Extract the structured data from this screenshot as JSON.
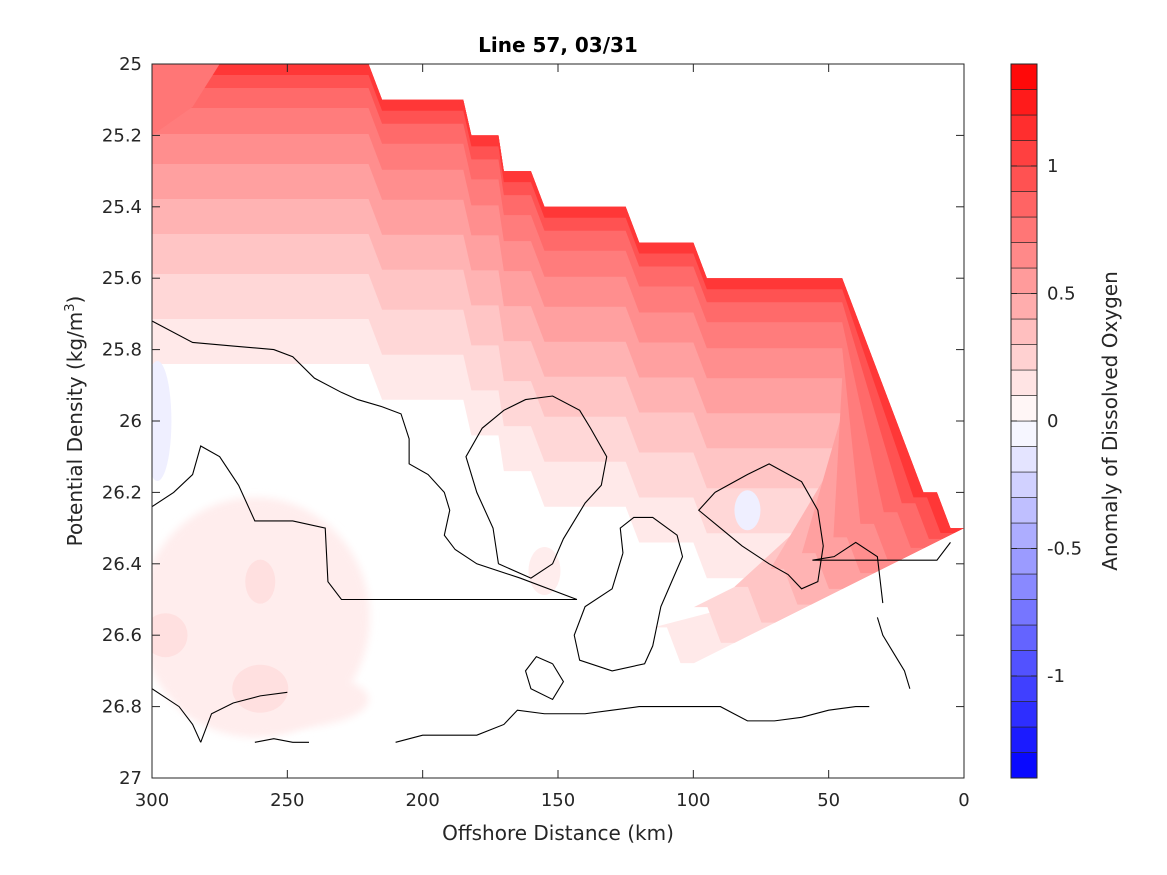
{
  "chart_data": {
    "type": "filled-contour",
    "title": "Line 57, 03/31",
    "xlabel": "Offshore Distance (km)",
    "ylabel_main": "Potential Density (kg/m",
    "ylabel_sup": "3",
    "ylabel_close": ")",
    "colorbar_label": "Anomaly of Dissolved Oxygen",
    "xlim": [
      300,
      0
    ],
    "x_reversed": true,
    "ylim": [
      25,
      27
    ],
    "y_reversed": true,
    "xticks": [
      300,
      250,
      200,
      150,
      100,
      50,
      0
    ],
    "xtick_labels": [
      "300",
      "250",
      "200",
      "150",
      "100",
      "50",
      "0"
    ],
    "yticks": [
      25,
      25.2,
      25.4,
      25.6,
      25.8,
      26,
      26.2,
      26.4,
      26.6,
      26.8,
      27
    ],
    "ytick_labels": [
      "25",
      "25.2",
      "25.4",
      "25.6",
      "25.8",
      "26",
      "26.2",
      "26.4",
      "26.6",
      "26.8",
      "27"
    ],
    "colorbar": {
      "range": [
        -1.4,
        1.4
      ],
      "levels": 28,
      "step": 0.1,
      "ticks": [
        -1,
        -0.5,
        0,
        0.5,
        1
      ],
      "tick_labels": [
        "-1",
        "-0.5",
        "0",
        "0.5",
        "1"
      ],
      "colormap": "blue-white-red",
      "low_color": "#0000ff",
      "mid_color": "#ffffff",
      "high_color": "#ff0000"
    },
    "data_top_boundary": [
      [
        300,
        25
      ],
      [
        220,
        25
      ],
      [
        215,
        25.1
      ],
      [
        200,
        25.1
      ],
      [
        185,
        25.1
      ],
      [
        182,
        25.2
      ],
      [
        172,
        25.2
      ],
      [
        170,
        25.3
      ],
      [
        160,
        25.3
      ],
      [
        155,
        25.4
      ],
      [
        125,
        25.4
      ],
      [
        120,
        25.5
      ],
      [
        100,
        25.5
      ],
      [
        95,
        25.6
      ],
      [
        45,
        25.6
      ],
      [
        15,
        26.2
      ],
      [
        10,
        26.2
      ],
      [
        5,
        26.3
      ],
      [
        0,
        26.3
      ]
    ],
    "anomaly_regions": [
      {
        "name": "upper-positive",
        "value_range": [
          0.1,
          1.4
        ],
        "peak_value": 1.3,
        "peak_location": [
          10,
          26.2
        ]
      },
      {
        "name": "lower-left-positive",
        "value_range": [
          0,
          0.2
        ],
        "location": [
          260,
          26.5
        ]
      },
      {
        "name": "left-edge-negative",
        "value_range": [
          -0.1,
          0
        ],
        "location": [
          298,
          26.0
        ]
      },
      {
        "name": "offshore-negative",
        "value_range": [
          -0.1,
          0
        ],
        "location": [
          80,
          26.25
        ]
      }
    ],
    "zero_contours": [
      [
        [
          300,
          25.72
        ],
        [
          285,
          25.78
        ],
        [
          270,
          25.79
        ],
        [
          255,
          25.8
        ],
        [
          248,
          25.82
        ],
        [
          240,
          25.88
        ],
        [
          230,
          25.92
        ],
        [
          224,
          25.94
        ],
        [
          215,
          25.96
        ],
        [
          208,
          25.98
        ],
        [
          205,
          26.05
        ],
        [
          205,
          26.12
        ],
        [
          198,
          26.15
        ],
        [
          192,
          26.2
        ],
        [
          190,
          26.25
        ],
        [
          192,
          26.32
        ],
        [
          188,
          26.36
        ],
        [
          180,
          26.4
        ],
        [
          164,
          26.44
        ],
        [
          143,
          26.5
        ],
        [
          230,
          26.5
        ],
        [
          235,
          26.45
        ],
        [
          236,
          26.3
        ],
        [
          248,
          26.28
        ],
        [
          262,
          26.28
        ],
        [
          268,
          26.18
        ],
        [
          275,
          26.1
        ],
        [
          282,
          26.07
        ],
        [
          285,
          26.15
        ],
        [
          292,
          26.2
        ],
        [
          300,
          26.24
        ]
      ],
      [
        [
          172,
          26.4
        ],
        [
          160,
          26.44
        ],
        [
          152,
          26.4
        ],
        [
          148,
          26.33
        ],
        [
          144,
          26.28
        ],
        [
          140,
          26.23
        ],
        [
          134,
          26.18
        ],
        [
          132,
          26.1
        ],
        [
          138,
          26.02
        ],
        [
          142,
          25.97
        ],
        [
          152,
          25.93
        ],
        [
          162,
          25.94
        ],
        [
          170,
          25.97
        ],
        [
          178,
          26.02
        ],
        [
          184,
          26.1
        ],
        [
          180,
          26.2
        ],
        [
          174,
          26.3
        ],
        [
          172,
          26.4
        ]
      ],
      [
        [
          126,
          26.37
        ],
        [
          130,
          26.47
        ],
        [
          140,
          26.52
        ],
        [
          144,
          26.6
        ],
        [
          142,
          26.67
        ],
        [
          130,
          26.7
        ],
        [
          118,
          26.68
        ],
        [
          115,
          26.63
        ],
        [
          112,
          26.52
        ],
        [
          108,
          26.45
        ],
        [
          104,
          26.38
        ],
        [
          106,
          26.32
        ],
        [
          115,
          26.27
        ],
        [
          122,
          26.27
        ],
        [
          127,
          26.3
        ],
        [
          126,
          26.37
        ]
      ],
      [
        [
          92,
          26.2
        ],
        [
          80,
          26.15
        ],
        [
          72,
          26.12
        ],
        [
          60,
          26.17
        ],
        [
          54,
          26.25
        ],
        [
          52,
          26.35
        ],
        [
          54,
          26.45
        ],
        [
          60,
          26.47
        ],
        [
          65,
          26.43
        ],
        [
          72,
          26.4
        ],
        [
          82,
          26.35
        ],
        [
          90,
          26.3
        ],
        [
          98,
          26.25
        ],
        [
          92,
          26.2
        ]
      ],
      [
        [
          152,
          26.68
        ],
        [
          158,
          26.66
        ],
        [
          162,
          26.7
        ],
        [
          160,
          26.75
        ],
        [
          152,
          26.78
        ],
        [
          148,
          26.73
        ],
        [
          152,
          26.68
        ]
      ],
      [
        [
          30,
          26.51
        ],
        [
          32,
          26.38
        ],
        [
          40,
          26.34
        ],
        [
          48,
          26.38
        ],
        [
          56,
          26.39
        ],
        [
          10,
          26.39
        ],
        [
          5,
          26.34
        ]
      ],
      [
        [
          20,
          26.75
        ],
        [
          22,
          26.7
        ],
        [
          26,
          26.65
        ],
        [
          30,
          26.6
        ],
        [
          32,
          26.55
        ]
      ],
      [
        [
          210,
          26.9
        ],
        [
          200,
          26.88
        ],
        [
          180,
          26.88
        ],
        [
          170,
          26.85
        ],
        [
          165,
          26.81
        ],
        [
          155,
          26.82
        ],
        [
          140,
          26.82
        ],
        [
          130,
          26.81
        ],
        [
          120,
          26.8
        ],
        [
          110,
          26.8
        ],
        [
          100,
          26.8
        ],
        [
          90,
          26.8
        ],
        [
          85,
          26.82
        ],
        [
          80,
          26.84
        ],
        [
          70,
          26.84
        ],
        [
          60,
          26.83
        ],
        [
          50,
          26.81
        ],
        [
          40,
          26.8
        ],
        [
          35,
          26.8
        ]
      ],
      [
        [
          282,
          26.9
        ],
        [
          278,
          26.82
        ],
        [
          270,
          26.79
        ],
        [
          260,
          26.77
        ],
        [
          250,
          26.76
        ]
      ],
      [
        [
          262,
          26.9
        ],
        [
          255,
          26.89
        ],
        [
          248,
          26.9
        ],
        [
          242,
          26.9
        ]
      ],
      [
        [
          300,
          26.75
        ],
        [
          290,
          26.8
        ],
        [
          285,
          26.85
        ],
        [
          282,
          26.9
        ]
      ]
    ]
  }
}
